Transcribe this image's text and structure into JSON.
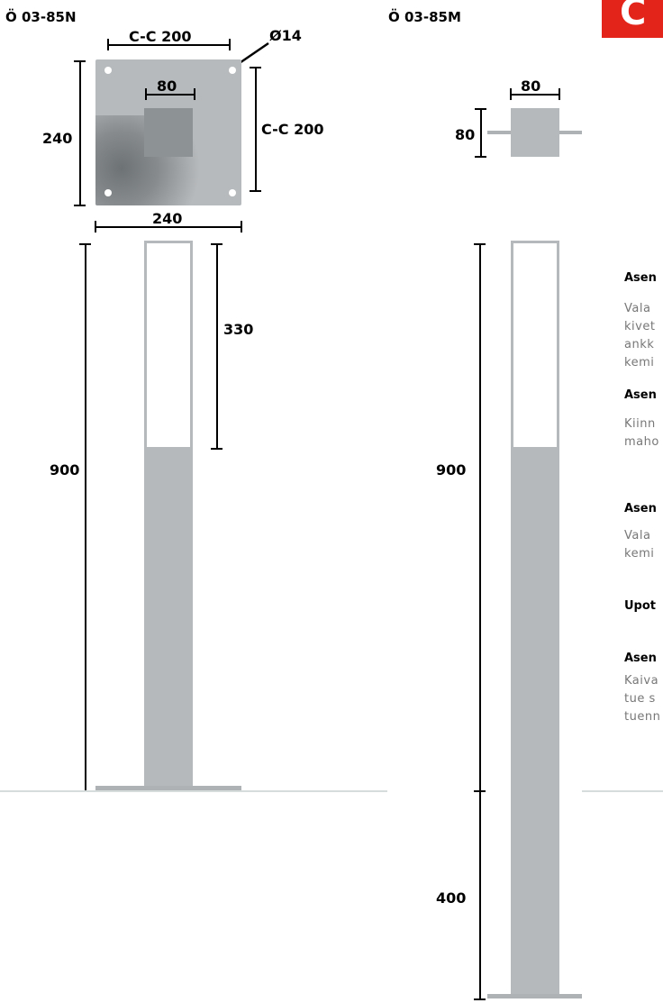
{
  "models": {
    "left": "Ö 03-85N",
    "right": "Ö 03-85M"
  },
  "left": {
    "cc_top": "C-C 200",
    "hole_dia": "Ø14",
    "sq_width": "80",
    "plate_height": "240",
    "cc_side": "C-C 200",
    "plate_width": "240",
    "post_top_len": "330",
    "post_height": "900"
  },
  "right": {
    "sq_width": "80",
    "sq_height": "80",
    "post_height": "900",
    "embed_depth": "400"
  },
  "text": {
    "h1": "Asen",
    "p1": "Vala\nkivet\nankk\nkemi",
    "h2": "Asen",
    "p2": "Kiinn\nmaho",
    "h3": "Asen",
    "p3": "Vala\nkemi",
    "h4": "Upot",
    "h5": "Asen",
    "p5": "Kaiva\ntue s\ntuenn"
  },
  "colors": {
    "logo": "#e3241b",
    "steel": "#b5b9bb"
  }
}
